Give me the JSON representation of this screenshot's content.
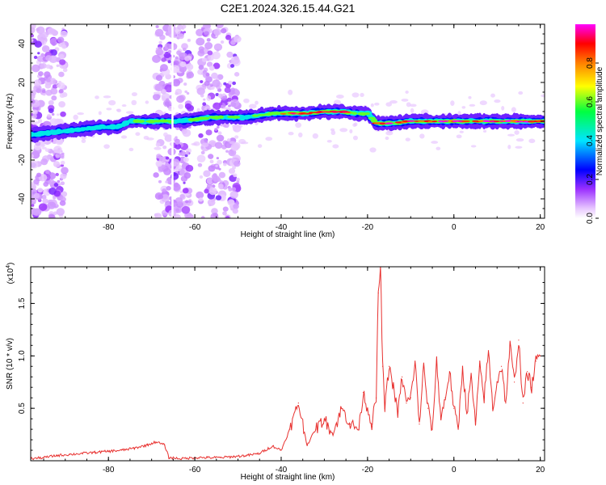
{
  "title": "C2E1.2024.326.15.44.G21",
  "colors": {
    "snr_line": "#e8312f",
    "ridge_low": "#7b1fff",
    "ridge_mid": "#18d8e8",
    "ridge_high": "#ff2020",
    "scatter": "#c9a4f6"
  },
  "chart_data": [
    {
      "type": "heatmap",
      "xlabel": "Height of straight line (km)",
      "ylabel": "Frequency (Hz)",
      "xlim": [
        -98,
        21
      ],
      "ylim": [
        -50,
        50
      ],
      "xticks": [
        -80,
        -60,
        -40,
        -20,
        0,
        20
      ],
      "yticks": [
        -40,
        -20,
        0,
        20,
        40
      ],
      "colorbar": {
        "label": "Normalized spectral amplitude",
        "range": [
          0,
          1
        ],
        "ticks": [
          0.0,
          0.2,
          0.4,
          0.6,
          0.8
        ],
        "colormap": [
          "#ffffff",
          "#e8c8ff",
          "#9b30ff",
          "#0000ff",
          "#00e5ff",
          "#00ff40",
          "#ffff00",
          "#ff8000",
          "#ff0000",
          "#ff00ff"
        ]
      },
      "ridge": {
        "x": [
          -98,
          -94,
          -90,
          -86,
          -82,
          -78,
          -75,
          -72,
          -69,
          -66,
          -64,
          -60,
          -56,
          -52,
          -48,
          -45,
          -42,
          -38,
          -34,
          -30,
          -26,
          -22,
          -20,
          -18,
          -14,
          -10,
          -6,
          -2,
          2,
          6,
          10,
          14,
          18,
          20
        ],
        "frequency": [
          -7,
          -6,
          -5,
          -4,
          -3,
          -3,
          0,
          0,
          0,
          0,
          0,
          1,
          2,
          2,
          2,
          3,
          4,
          4,
          4,
          5,
          5,
          4,
          4,
          -1,
          -1,
          0,
          0,
          0,
          0,
          0,
          0,
          0,
          0,
          0
        ],
        "amplitude": [
          0.25,
          0.3,
          0.35,
          0.4,
          0.45,
          0.35,
          0.55,
          0.6,
          0.65,
          0.7,
          0.4,
          0.6,
          0.65,
          0.6,
          0.5,
          0.6,
          0.7,
          0.9,
          0.85,
          0.9,
          0.95,
          0.7,
          0.6,
          0.8,
          0.95,
          0.9,
          0.9,
          0.95,
          0.95,
          0.95,
          0.9,
          0.95,
          0.9,
          0.9
        ]
      },
      "noise_bands": [
        [
          -98,
          -90
        ],
        [
          -69,
          -61
        ],
        [
          -59,
          -50
        ]
      ]
    },
    {
      "type": "line",
      "xlabel": "Height of straight line (km)",
      "ylabel": "SNR (10 * v/v)",
      "scale_label": "(x10",
      "scale_exponent": "4",
      "xlim": [
        -98,
        21
      ],
      "ylim": [
        0,
        1.85
      ],
      "xticks": [
        -80,
        -60,
        -40,
        -20,
        0,
        20
      ],
      "yticks": [
        0.5,
        1.0,
        1.5
      ],
      "x": [
        -98,
        -95,
        -92,
        -89,
        -86,
        -83,
        -80,
        -77,
        -74,
        -71,
        -69,
        -67,
        -66,
        -63,
        -60,
        -57,
        -54,
        -51,
        -48,
        -45,
        -42,
        -40,
        -38,
        -36,
        -34,
        -32,
        -30,
        -28,
        -26,
        -24,
        -22,
        -21,
        -20,
        -19,
        -18,
        -17.5,
        -17,
        -16.5,
        -16,
        -15,
        -14,
        -13,
        -12,
        -11,
        -10,
        -9,
        -8,
        -7,
        -6,
        -5,
        -4,
        -3,
        -2,
        -1,
        0,
        1,
        2,
        3,
        4,
        5,
        6,
        7,
        8,
        9,
        10,
        11,
        12,
        13,
        14,
        15,
        16,
        17,
        18,
        19,
        20
      ],
      "y": [
        0.02,
        0.03,
        0.05,
        0.06,
        0.07,
        0.08,
        0.09,
        0.1,
        0.12,
        0.15,
        0.18,
        0.15,
        0.03,
        0.02,
        0.03,
        0.03,
        0.03,
        0.04,
        0.05,
        0.07,
        0.14,
        0.1,
        0.3,
        0.55,
        0.15,
        0.3,
        0.4,
        0.25,
        0.5,
        0.35,
        0.3,
        0.65,
        0.5,
        0.35,
        0.6,
        1.6,
        1.85,
        0.9,
        0.5,
        0.9,
        0.7,
        0.45,
        0.8,
        0.55,
        0.6,
        0.95,
        0.35,
        0.9,
        0.5,
        0.3,
        0.95,
        0.4,
        0.6,
        0.85,
        0.5,
        0.3,
        0.9,
        0.45,
        0.8,
        0.35,
        0.9,
        0.6,
        1.05,
        0.5,
        0.75,
        0.9,
        0.55,
        1.1,
        0.75,
        1.15,
        0.55,
        0.85,
        0.7,
        0.95,
        1.0
      ]
    }
  ]
}
